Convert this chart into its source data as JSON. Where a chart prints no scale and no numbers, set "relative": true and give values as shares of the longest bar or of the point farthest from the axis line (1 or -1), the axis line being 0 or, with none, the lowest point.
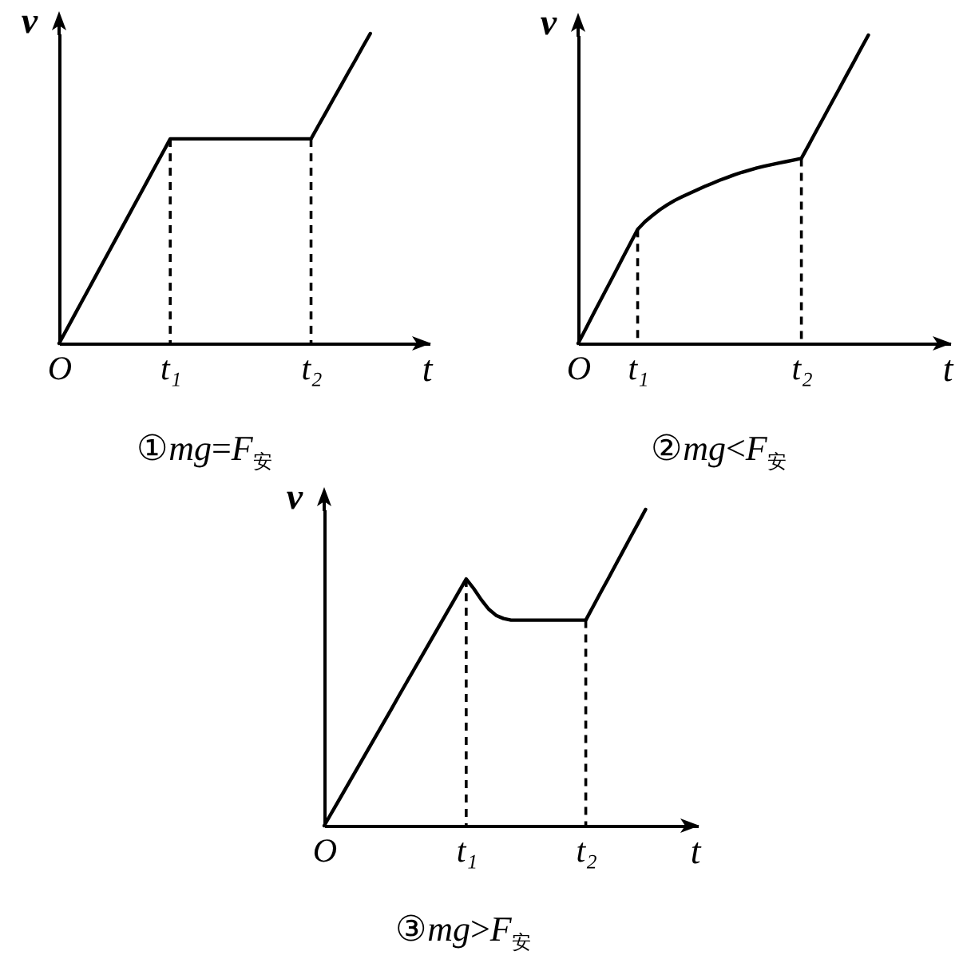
{
  "chart_data": [
    {
      "type": "line",
      "title": "①mg=F$_{安}$",
      "xlabel": "t",
      "ylabel": "v",
      "relative": true,
      "categories": [
        "O",
        null,
        null,
        null,
        null,
        null,
        null,
        null,
        null,
        null,
        null,
        null,
        null,
        null,
        null,
        "t₁",
        null,
        null,
        null,
        null,
        null,
        null,
        null,
        null,
        null,
        null,
        null,
        null,
        null,
        null,
        null,
        null,
        null,
        null,
        "t₂",
        null,
        null,
        null,
        null,
        null,
        null,
        null,
        null,
        null,
        null,
        null,
        null,
        null,
        null,
        null,
        null
      ],
      "series": [
        {
          "color": "#000000",
          "values": [
            0,
            0.044,
            0.088,
            0.132,
            0.176,
            0.22,
            0.264,
            0.308,
            0.352,
            0.396,
            0.44,
            0.484,
            0.528,
            0.572,
            0.616,
            0.66,
            0.66,
            0.66,
            0.66,
            0.66,
            0.66,
            0.66,
            0.66,
            0.66,
            0.66,
            0.66,
            0.66,
            0.66,
            0.66,
            0.66,
            0.66,
            0.66,
            0.66,
            0.66,
            0.66,
            0.703,
            0.745,
            0.788,
            0.83,
            0.873,
            0.915,
            0.958,
            1,
            null,
            null,
            null,
            null,
            null,
            null,
            null,
            null
          ]
        }
      ],
      "ref_lines": [
        {
          "axis": "x",
          "value": "t₁",
          "color": "#000000",
          "line_style": "dashed"
        },
        {
          "axis": "x",
          "value": "t₂",
          "color": "#000000",
          "line_style": "dashed"
        }
      ]
    },
    {
      "type": "line",
      "title": "②mg<F$_{安}$",
      "xlabel": "t",
      "ylabel": "v",
      "relative": true,
      "categories": [
        "O",
        null,
        null,
        null,
        null,
        null,
        null,
        null,
        "t₁",
        null,
        null,
        null,
        null,
        null,
        null,
        null,
        null,
        null,
        null,
        null,
        null,
        null,
        null,
        null,
        null,
        null,
        null,
        null,
        null,
        null,
        "t₂",
        null,
        null,
        null,
        null,
        null,
        null,
        null,
        null,
        null,
        null,
        null,
        null,
        null,
        null,
        null,
        null,
        null,
        null,
        null,
        null
      ],
      "series": [
        {
          "color": "#000000",
          "values": [
            0,
            0.046,
            0.093,
            0.139,
            0.185,
            0.231,
            0.278,
            0.324,
            0.37,
            0.395,
            0.415,
            0.434,
            0.45,
            0.464,
            0.476,
            0.487,
            0.498,
            0.509,
            0.519,
            0.529,
            0.538,
            0.547,
            0.555,
            0.562,
            0.569,
            0.575,
            0.58,
            0.585,
            0.59,
            0.595,
            0.6,
            0.644,
            0.689,
            0.733,
            0.778,
            0.822,
            0.867,
            0.911,
            0.956,
            1,
            null,
            null,
            null,
            null,
            null,
            null,
            null,
            null,
            null,
            null,
            null
          ]
        }
      ],
      "ref_lines": [
        {
          "axis": "x",
          "value": "t₁",
          "color": "#000000",
          "line_style": "dashed"
        },
        {
          "axis": "x",
          "value": "t₂",
          "color": "#000000",
          "line_style": "dashed"
        }
      ]
    },
    {
      "type": "line",
      "title": "③mg>F$_{安}$",
      "xlabel": "t",
      "ylabel": "v",
      "relative": true,
      "categories": [
        "O",
        null,
        null,
        null,
        null,
        null,
        null,
        null,
        null,
        null,
        null,
        null,
        null,
        null,
        null,
        null,
        null,
        null,
        null,
        "t₁",
        null,
        null,
        null,
        null,
        null,
        null,
        null,
        null,
        null,
        null,
        null,
        null,
        null,
        null,
        null,
        "t₂",
        null,
        null,
        null,
        null,
        null,
        null,
        null,
        null,
        null,
        null,
        null,
        null,
        null,
        null,
        null
      ],
      "series": [
        {
          "color": "#000000",
          "values": [
            0,
            0.041,
            0.082,
            0.123,
            0.164,
            0.205,
            0.246,
            0.287,
            0.328,
            0.369,
            0.411,
            0.452,
            0.493,
            0.534,
            0.575,
            0.616,
            0.657,
            0.698,
            0.739,
            0.78,
            0.75,
            0.715,
            0.685,
            0.665,
            0.655,
            0.65,
            0.65,
            0.65,
            0.65,
            0.65,
            0.65,
            0.65,
            0.65,
            0.65,
            0.65,
            0.65,
            0.694,
            0.738,
            0.781,
            0.825,
            0.869,
            0.913,
            0.956,
            1,
            null,
            null,
            null,
            null,
            null,
            null,
            null
          ]
        }
      ],
      "ref_lines": [
        {
          "axis": "x",
          "value": "t₁",
          "color": "#000000",
          "line_style": "dashed"
        },
        {
          "axis": "x",
          "value": "t₂",
          "color": "#000000",
          "line_style": "dashed"
        }
      ]
    }
  ]
}
